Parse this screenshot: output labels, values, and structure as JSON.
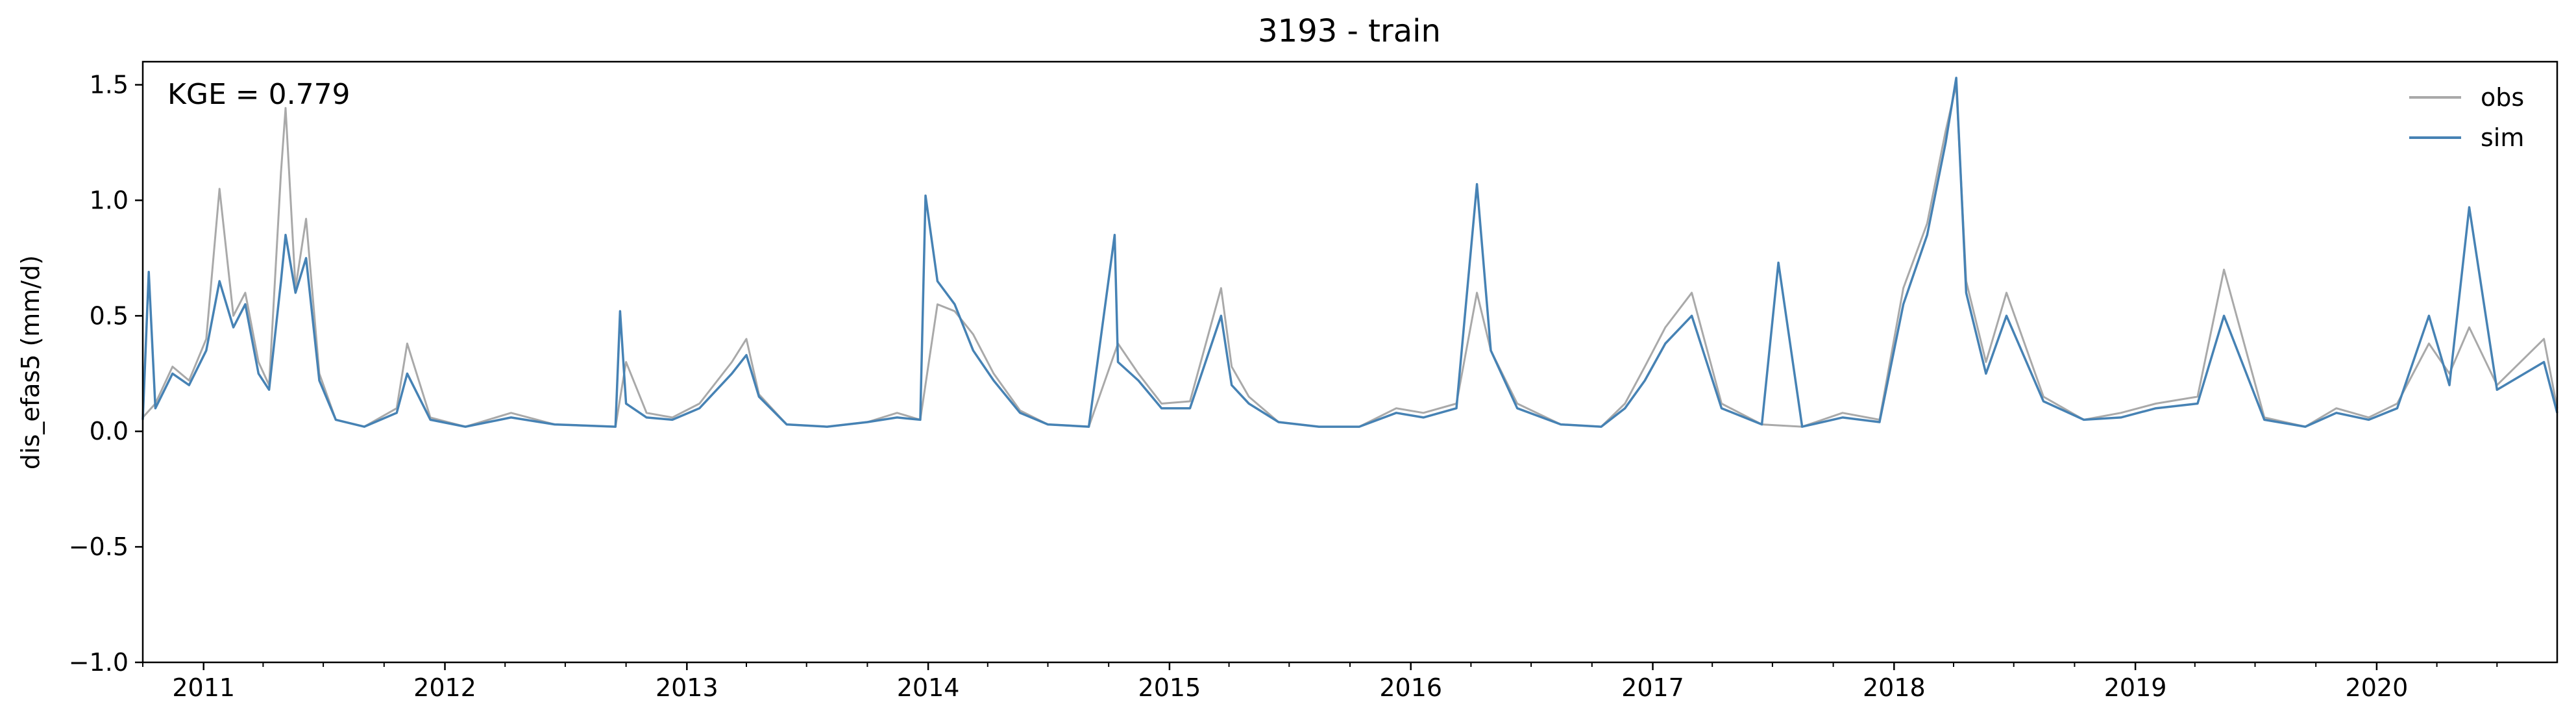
{
  "chart_data": {
    "type": "line",
    "title": "3193 - train",
    "xlabel": "",
    "ylabel": "dis_efas5 (mm/d)",
    "ylim": [
      -1.0,
      1.6
    ],
    "xlim": [
      "2010-10-01",
      "2020-09-30"
    ],
    "yticks": [
      -1.0,
      -0.5,
      0.0,
      0.5,
      1.0,
      1.5
    ],
    "ytick_labels": [
      "−1.0",
      "−0.5",
      "0.0",
      "0.5",
      "1.0",
      "1.5"
    ],
    "xticks": [
      "2011-01-01",
      "2012-01-01",
      "2013-01-01",
      "2014-01-01",
      "2015-01-01",
      "2016-01-01",
      "2017-01-01",
      "2018-01-01",
      "2019-01-01",
      "2020-01-01"
    ],
    "xtick_labels": [
      "2011",
      "2012",
      "2013",
      "2014",
      "2015",
      "2016",
      "2017",
      "2018",
      "2019",
      "2020"
    ],
    "annotation": "KGE = 0.779",
    "legend_position": "top-right",
    "grid": false,
    "series": [
      {
        "name": "obs",
        "color": "#a9a9a9",
        "x": [
          "2010-10-01",
          "2010-10-20",
          "2010-11-15",
          "2010-12-10",
          "2011-01-05",
          "2011-01-25",
          "2011-02-15",
          "2011-03-05",
          "2011-03-25",
          "2011-04-10",
          "2011-04-28",
          "2011-05-05",
          "2011-05-20",
          "2011-06-05",
          "2011-06-25",
          "2011-07-20",
          "2011-09-01",
          "2011-10-20",
          "2011-11-05",
          "2011-12-10",
          "2012-02-01",
          "2012-04-10",
          "2012-06-15",
          "2012-09-15",
          "2012-10-01",
          "2012-11-01",
          "2012-12-10",
          "2013-01-20",
          "2013-03-10",
          "2013-04-01",
          "2013-04-20",
          "2013-06-01",
          "2013-08-01",
          "2013-10-01",
          "2013-11-15",
          "2013-12-20",
          "2014-01-15",
          "2014-02-10",
          "2014-03-10",
          "2014-04-10",
          "2014-05-20",
          "2014-07-01",
          "2014-09-01",
          "2014-10-15",
          "2014-11-15",
          "2014-12-20",
          "2015-02-01",
          "2015-03-20",
          "2015-04-05",
          "2015-05-01",
          "2015-06-15",
          "2015-08-15",
          "2015-10-15",
          "2015-12-10",
          "2016-01-20",
          "2016-03-10",
          "2016-04-10",
          "2016-05-01",
          "2016-06-10",
          "2016-08-15",
          "2016-10-15",
          "2016-11-20",
          "2016-12-20",
          "2017-01-20",
          "2017-03-01",
          "2017-04-15",
          "2017-06-15",
          "2017-08-15",
          "2017-10-15",
          "2017-12-10",
          "2018-01-15",
          "2018-02-20",
          "2018-03-20",
          "2018-04-05",
          "2018-04-20",
          "2018-05-20",
          "2018-06-20",
          "2018-08-15",
          "2018-10-15",
          "2018-12-10",
          "2019-02-01",
          "2019-04-05",
          "2019-05-15",
          "2019-07-15",
          "2019-09-15",
          "2019-11-01",
          "2019-12-20",
          "2020-02-01",
          "2020-03-20",
          "2020-04-20",
          "2020-05-20",
          "2020-07-01",
          "2020-09-10",
          "2020-09-30"
        ],
        "values": [
          0.06,
          0.12,
          0.28,
          0.22,
          0.4,
          1.05,
          0.5,
          0.6,
          0.3,
          0.2,
          1.12,
          1.4,
          0.62,
          0.92,
          0.25,
          0.05,
          0.02,
          0.1,
          0.38,
          0.06,
          0.02,
          0.08,
          0.03,
          0.02,
          0.3,
          0.08,
          0.06,
          0.12,
          0.3,
          0.4,
          0.16,
          0.03,
          0.02,
          0.04,
          0.08,
          0.05,
          0.55,
          0.52,
          0.42,
          0.25,
          0.09,
          0.03,
          0.02,
          0.38,
          0.25,
          0.12,
          0.13,
          0.62,
          0.28,
          0.15,
          0.04,
          0.02,
          0.02,
          0.1,
          0.08,
          0.12,
          0.6,
          0.35,
          0.12,
          0.03,
          0.02,
          0.12,
          0.28,
          0.45,
          0.6,
          0.12,
          0.03,
          0.02,
          0.08,
          0.05,
          0.62,
          0.9,
          1.3,
          1.5,
          0.65,
          0.3,
          0.6,
          0.15,
          0.05,
          0.08,
          0.12,
          0.15,
          0.7,
          0.06,
          0.02,
          0.1,
          0.06,
          0.12,
          0.38,
          0.25,
          0.45,
          0.2,
          0.4,
          0.1
        ]
      },
      {
        "name": "sim",
        "color": "#4682b4",
        "x": [
          "2010-10-01",
          "2010-10-10",
          "2010-10-20",
          "2010-11-15",
          "2010-12-10",
          "2011-01-05",
          "2011-01-25",
          "2011-02-15",
          "2011-03-05",
          "2011-03-25",
          "2011-04-10",
          "2011-04-28",
          "2011-05-05",
          "2011-05-20",
          "2011-06-05",
          "2011-06-25",
          "2011-07-20",
          "2011-09-01",
          "2011-10-20",
          "2011-11-05",
          "2011-12-10",
          "2012-02-01",
          "2012-04-10",
          "2012-06-15",
          "2012-09-15",
          "2012-09-22",
          "2012-10-01",
          "2012-11-01",
          "2012-12-10",
          "2013-01-20",
          "2013-03-10",
          "2013-04-01",
          "2013-04-20",
          "2013-06-01",
          "2013-08-01",
          "2013-10-01",
          "2013-11-15",
          "2013-12-20",
          "2013-12-28",
          "2014-01-15",
          "2014-02-10",
          "2014-03-10",
          "2014-04-10",
          "2014-05-20",
          "2014-07-01",
          "2014-09-01",
          "2014-10-10",
          "2014-10-15",
          "2014-11-15",
          "2014-12-20",
          "2015-02-01",
          "2015-03-20",
          "2015-04-05",
          "2015-05-01",
          "2015-06-15",
          "2015-08-15",
          "2015-10-15",
          "2015-12-10",
          "2016-01-20",
          "2016-03-10",
          "2016-04-10",
          "2016-05-01",
          "2016-06-10",
          "2016-08-15",
          "2016-10-15",
          "2016-11-20",
          "2016-12-20",
          "2017-01-20",
          "2017-03-01",
          "2017-04-15",
          "2017-06-15",
          "2017-07-10",
          "2017-08-15",
          "2017-10-15",
          "2017-12-10",
          "2018-01-15",
          "2018-02-20",
          "2018-03-20",
          "2018-04-05",
          "2018-04-20",
          "2018-05-20",
          "2018-06-20",
          "2018-08-15",
          "2018-10-15",
          "2018-12-10",
          "2019-02-01",
          "2019-04-05",
          "2019-05-15",
          "2019-07-15",
          "2019-09-15",
          "2019-11-01",
          "2019-12-20",
          "2020-02-01",
          "2020-03-20",
          "2020-04-20",
          "2020-05-20",
          "2020-07-01",
          "2020-09-10",
          "2020-09-30"
        ],
        "values": [
          0.05,
          0.69,
          0.1,
          0.25,
          0.2,
          0.35,
          0.65,
          0.45,
          0.55,
          0.25,
          0.18,
          0.65,
          0.85,
          0.6,
          0.75,
          0.22,
          0.05,
          0.02,
          0.08,
          0.25,
          0.05,
          0.02,
          0.06,
          0.03,
          0.02,
          0.52,
          0.12,
          0.06,
          0.05,
          0.1,
          0.25,
          0.33,
          0.15,
          0.03,
          0.02,
          0.04,
          0.06,
          0.05,
          1.02,
          0.65,
          0.55,
          0.35,
          0.22,
          0.08,
          0.03,
          0.02,
          0.85,
          0.3,
          0.22,
          0.1,
          0.1,
          0.5,
          0.2,
          0.12,
          0.04,
          0.02,
          0.02,
          0.08,
          0.06,
          0.1,
          1.07,
          0.35,
          0.1,
          0.03,
          0.02,
          0.1,
          0.22,
          0.38,
          0.5,
          0.1,
          0.03,
          0.73,
          0.02,
          0.06,
          0.04,
          0.55,
          0.85,
          1.25,
          1.53,
          0.6,
          0.25,
          0.5,
          0.13,
          0.05,
          0.06,
          0.1,
          0.12,
          0.5,
          0.05,
          0.02,
          0.08,
          0.05,
          0.1,
          0.5,
          0.2,
          0.97,
          0.18,
          0.3,
          0.08
        ]
      }
    ]
  }
}
